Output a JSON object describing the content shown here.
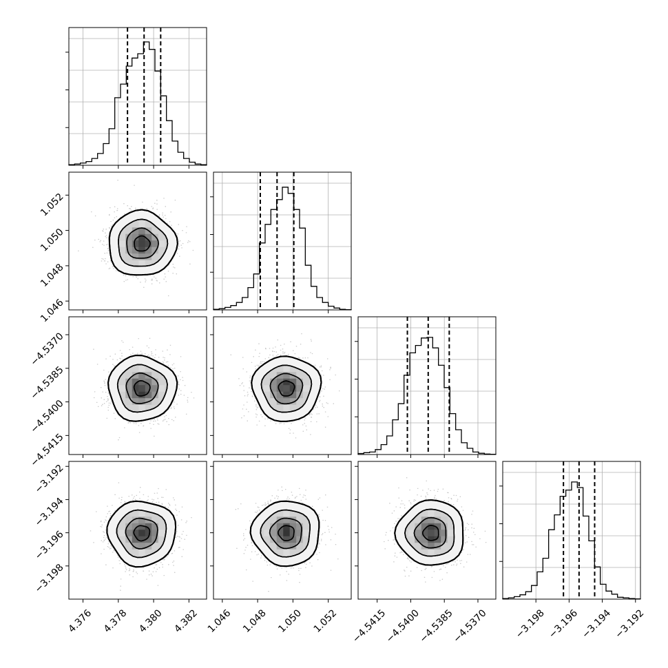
{
  "chart_data": {
    "type": "corner",
    "grid": true,
    "params": [
      {
        "xticks": [
          "4.376",
          "4.378",
          "4.380",
          "4.382"
        ],
        "tick_values": [
          4.376,
          4.378,
          4.38,
          4.382
        ],
        "range": [
          4.3752,
          4.383
        ],
        "quantiles": [
          4.37852,
          4.37946,
          4.3804
        ],
        "hist": [
          0.005,
          0.01,
          0.018,
          0.03,
          0.055,
          0.095,
          0.175,
          0.295,
          0.545,
          0.655,
          0.8,
          0.865,
          0.9,
          0.995,
          0.935,
          0.76,
          0.56,
          0.36,
          0.195,
          0.105,
          0.055,
          0.025,
          0.01,
          0.005
        ]
      },
      {
        "xticks": [
          "1.046",
          "1.048",
          "1.050",
          "1.052"
        ],
        "tick_values": [
          1.046,
          1.048,
          1.05,
          1.052
        ],
        "range": [
          1.0455,
          1.0533
        ],
        "quantiles": [
          1.04815,
          1.0491,
          1.05005
        ],
        "yticks": [
          "1.046",
          "1.048",
          "1.050",
          "1.052"
        ],
        "hist": [
          0.005,
          0.01,
          0.02,
          0.035,
          0.06,
          0.1,
          0.18,
          0.29,
          0.54,
          0.69,
          0.81,
          0.89,
          0.99,
          0.94,
          0.81,
          0.66,
          0.36,
          0.19,
          0.1,
          0.06,
          0.03,
          0.015,
          0.005,
          0.002
        ]
      },
      {
        "xticks": [
          "−4.5415",
          "−4.5400",
          "−4.5385",
          "−4.5370"
        ],
        "tick_values": [
          -4.5415,
          -4.54,
          -4.5385,
          -4.537
        ],
        "range": [
          -4.54235,
          -4.5362
        ],
        "quantiles": [
          -4.54015,
          -4.53922,
          -4.53828
        ],
        "yticks": [
          "−4.5370",
          "−4.5385",
          "−4.5400",
          "−4.5415"
        ],
        "hist": [
          0.008,
          0.015,
          0.02,
          0.04,
          0.08,
          0.15,
          0.28,
          0.41,
          0.64,
          0.82,
          0.88,
          0.94,
          0.945,
          0.86,
          0.72,
          0.54,
          0.33,
          0.2,
          0.095,
          0.05,
          0.02,
          0.01,
          0.004,
          0.002
        ]
      },
      {
        "xticks": [
          "−3.198",
          "−3.196",
          "−3.194",
          "−3.192"
        ],
        "tick_values": [
          -3.198,
          -3.196,
          -3.194,
          -3.192
        ],
        "range": [
          -3.2,
          -3.1917
        ],
        "quantiles": [
          -3.19634,
          -3.1954,
          -3.19446
        ],
        "yticks": [
          "−3.192",
          "−3.194",
          "−3.196",
          "−3.198"
        ],
        "hist": [
          0.005,
          0.01,
          0.02,
          0.035,
          0.06,
          0.11,
          0.22,
          0.33,
          0.56,
          0.68,
          0.83,
          0.88,
          0.945,
          0.9,
          0.67,
          0.47,
          0.26,
          0.12,
          0.065,
          0.04,
          0.015,
          0.01,
          0.005,
          0.002
        ]
      }
    ]
  }
}
